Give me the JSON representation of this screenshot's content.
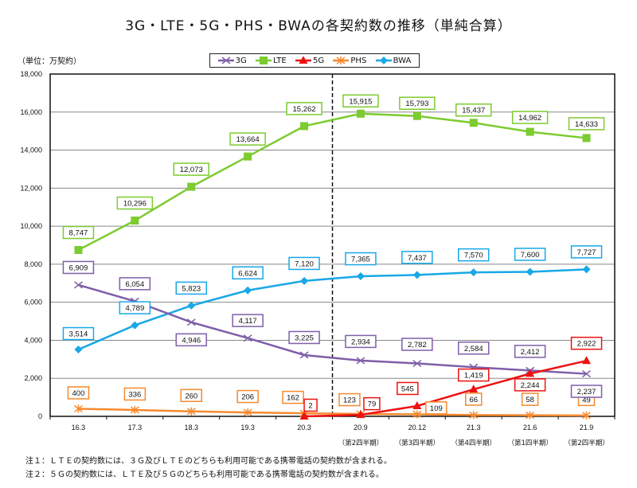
{
  "title": "3G・LTE・5G・PHS・BWAの各契約数の推移（単純合算）",
  "unit_label": "（単位：万契約）",
  "notes": [
    "注１：ＬＴＥの契約数には、３Ｇ及びＬＴＥのどちらも利用可能である携帯電話の契約数が含まれる。",
    "注２：５Ｇの契約数には、ＬＴＥ及び５Ｇのどちらも利用可能である携帯電話の契約数が含まれる。"
  ],
  "chart_data": {
    "type": "line",
    "title": "3G・LTE・5G・PHS・BWAの各契約数の推移（単純合算）",
    "xlabel": "",
    "ylabel": "（単位：万契約）",
    "ylim": [
      0,
      18000
    ],
    "yticks": [
      0,
      2000,
      4000,
      6000,
      8000,
      10000,
      12000,
      14000,
      16000,
      18000
    ],
    "ytick_labels": [
      "0",
      "2,000",
      "4,000",
      "6,000",
      "8,000",
      "10,000",
      "12,000",
      "14,000",
      "16,000",
      "18,000"
    ],
    "grid": true,
    "legend_position": "top-center",
    "categories": [
      "16.3",
      "17.3",
      "18.3",
      "19.3",
      "20.3",
      "20.9",
      "20.12",
      "21.3",
      "21.6",
      "21.9"
    ],
    "sub_labels": [
      "",
      "",
      "",
      "",
      "",
      "（第2四半期）",
      "（第3四半期）",
      "（第4四半期）",
      "（第1四半期）",
      "（第2四半期）"
    ],
    "divider_after_index": 4,
    "series": [
      {
        "name": "3G",
        "color": "#7f5ea8",
        "marker": "x",
        "values": [
          6909,
          6054,
          4946,
          4117,
          3225,
          2934,
          2782,
          2584,
          2412,
          2237
        ],
        "labels": [
          "6,909",
          "6,054",
          "4,946",
          "4,117",
          "3,225",
          "2,934",
          "2,782",
          "2,584",
          "2,412",
          "2,237"
        ]
      },
      {
        "name": "LTE",
        "color": "#7ccb2f",
        "marker": "square",
        "values": [
          8747,
          10296,
          12073,
          13664,
          15262,
          15915,
          15793,
          15437,
          14962,
          14633
        ],
        "labels": [
          "8,747",
          "10,296",
          "12,073",
          "13,664",
          "15,262",
          "15,915",
          "15,793",
          "15,437",
          "14,962",
          "14,633"
        ]
      },
      {
        "name": "5G",
        "color": "#ee1111",
        "marker": "triangle",
        "values": [
          null,
          null,
          null,
          null,
          2,
          79,
          545,
          1419,
          2244,
          2922
        ],
        "labels": [
          null,
          null,
          null,
          null,
          "2",
          "79",
          "545",
          "1,419",
          "2,244",
          "2,922"
        ]
      },
      {
        "name": "PHS",
        "color": "#f58a2e",
        "marker": "star",
        "values": [
          400,
          336,
          260,
          206,
          162,
          123,
          109,
          66,
          58,
          49
        ],
        "labels": [
          "400",
          "336",
          "260",
          "206",
          "162",
          "123",
          "109",
          "66",
          "58",
          "49"
        ]
      },
      {
        "name": "BWA",
        "color": "#18a8e6",
        "marker": "diamond",
        "values": [
          3514,
          4789,
          5823,
          6624,
          7120,
          7365,
          7437,
          7570,
          7600,
          7727
        ],
        "labels": [
          "3,514",
          "4,789",
          "5,823",
          "6,624",
          "7,120",
          "7,365",
          "7,437",
          "7,570",
          "7,600",
          "7,727"
        ]
      }
    ]
  }
}
